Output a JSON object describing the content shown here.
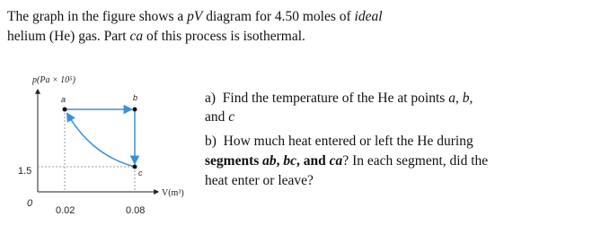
{
  "intro": [
    "The graph in the figure shows a ",
    "pV",
    " diagram for 4.50 moles of ",
    "ideal",
    " helium (He) gas. Part ",
    "ca",
    " of this process is isothermal."
  ],
  "figure": {
    "y_axis_label": "p(Pa × 10⁵)",
    "x_axis_label": "V(m³)",
    "y_tick": "1.5",
    "origin": "0",
    "x_ticks": [
      "0.02",
      "0.08"
    ],
    "points": [
      "a",
      "b",
      "c"
    ]
  },
  "questions": [
    [
      "a)",
      "Find the temperature of the He at points ",
      "a",
      ", ",
      "b",
      ",",
      "and ",
      "c"
    ],
    [
      "b)",
      "How much heat entered or left the He during",
      "segments ",
      "ab",
      ", ",
      "bc",
      ", and ",
      "ca",
      "? In each segment, did the",
      "heat enter or leave?"
    ]
  ]
}
